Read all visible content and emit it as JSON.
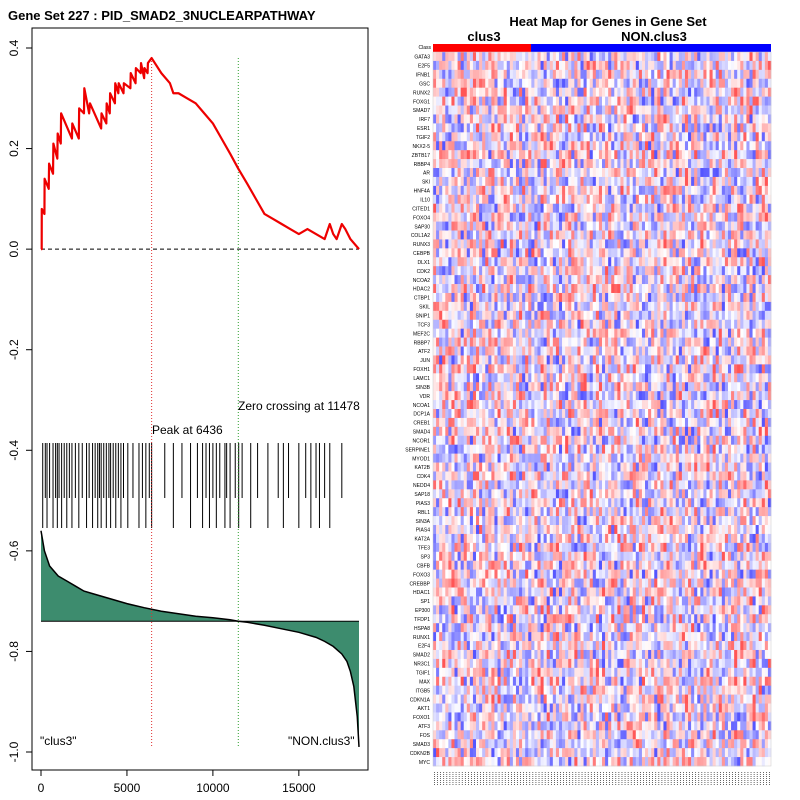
{
  "chart_data": [
    {
      "type": "line",
      "title": "Gene Set  227 : PID_SMAD2_3NUCLEARPATHWAY",
      "xlim": [
        0,
        18500
      ],
      "ylim": [
        -1.0,
        0.4
      ],
      "x_ticks": [
        "0",
        "5000",
        "10000",
        "15000"
      ],
      "y_ticks": [
        "-1.0",
        "-0.8",
        "-0.6",
        "-0.4",
        "-0.2",
        "0.0",
        "0.2",
        "0.4"
      ],
      "series": [
        {
          "x": [
            0,
            40,
            45,
            200,
            210,
            450,
            470,
            700,
            720,
            950,
            970,
            1150,
            1170,
            1800,
            1820,
            2200,
            2220,
            2500,
            2520,
            2800,
            2850,
            3500,
            3520,
            3800,
            3820,
            4000,
            4020,
            4300,
            4320,
            4500,
            4520,
            4800,
            4820,
            5200,
            5220,
            5500,
            5520,
            5800,
            5820,
            6000,
            6020,
            6200,
            6220,
            6436,
            7000,
            7500,
            7700,
            8000,
            8500,
            9000,
            9500,
            10000,
            10500,
            11000,
            11478,
            12000,
            12500,
            13000,
            13500,
            14000,
            14500,
            15000,
            15500,
            16000,
            16500,
            16800,
            17000,
            17200,
            17500,
            17700,
            18000,
            18500
          ],
          "y": [
            0.0,
            0.0,
            0.08,
            0.07,
            0.14,
            0.12,
            0.17,
            0.15,
            0.21,
            0.18,
            0.23,
            0.21,
            0.27,
            0.22,
            0.25,
            0.22,
            0.28,
            0.27,
            0.32,
            0.27,
            0.29,
            0.24,
            0.27,
            0.25,
            0.29,
            0.27,
            0.31,
            0.29,
            0.33,
            0.31,
            0.33,
            0.31,
            0.33,
            0.32,
            0.35,
            0.33,
            0.36,
            0.35,
            0.37,
            0.34,
            0.36,
            0.35,
            0.37,
            0.38,
            0.35,
            0.33,
            0.31,
            0.31,
            0.3,
            0.29,
            0.27,
            0.25,
            0.22,
            0.19,
            0.16,
            0.13,
            0.1,
            0.07,
            0.06,
            0.05,
            0.04,
            0.03,
            0.04,
            0.03,
            0.02,
            0.05,
            0.03,
            0.02,
            0.05,
            0.04,
            0.02,
            0.0
          ]
        }
      ],
      "annotations": {
        "peak_label": "Peak at 6436",
        "peak_x": 6436,
        "zero_label": "Zero crossing at 11478",
        "zero_x": 11478,
        "left_label": "\"clus3\"",
        "right_label": "\"NON.clus3\""
      },
      "hits": [
        100,
        250,
        350,
        500,
        700,
        850,
        950,
        1050,
        1200,
        1350,
        1500,
        1650,
        1800,
        2000,
        2200,
        2400,
        2650,
        2800,
        3000,
        3150,
        3300,
        3400,
        3500,
        3650,
        3800,
        3950,
        4050,
        4200,
        4350,
        4500,
        4650,
        4800,
        5050,
        5350,
        5700,
        5900,
        6100,
        6300,
        6436,
        7200,
        7700,
        8200,
        8700,
        9100,
        9400,
        9600,
        9800,
        10000,
        10200,
        10400,
        10700,
        10800,
        11000,
        11300,
        11500,
        11700,
        12200,
        12600,
        13200,
        13800,
        14100,
        14400,
        15000,
        15400,
        15700,
        16000,
        16200,
        16500,
        16800,
        17500
      ],
      "ranked_metric": {
        "x": [
          0,
          200,
          500,
          1000,
          1500,
          2000,
          2500,
          3000,
          3500,
          4000,
          5000,
          6000,
          7000,
          8000,
          9000,
          10000,
          11000,
          11478,
          12000,
          13000,
          14000,
          15000,
          16000,
          16500,
          17000,
          17500,
          17800,
          18000,
          18200,
          18400,
          18500
        ],
        "y": [
          -0.56,
          -0.6,
          -0.63,
          -0.65,
          -0.66,
          -0.67,
          -0.68,
          -0.685,
          -0.69,
          -0.695,
          -0.705,
          -0.713,
          -0.72,
          -0.725,
          -0.73,
          -0.733,
          -0.737,
          -0.74,
          -0.742,
          -0.748,
          -0.755,
          -0.762,
          -0.772,
          -0.78,
          -0.79,
          -0.805,
          -0.82,
          -0.84,
          -0.87,
          -0.93,
          -0.99
        ]
      }
    },
    {
      "type": "heatmap",
      "title": "Heat Map for Genes in Gene Set",
      "group_labels": [
        "clus3",
        "NON.clus3"
      ],
      "group_split": 0.29,
      "class_row_label": "Class",
      "genes": [
        "GATA3",
        "E2F5",
        "IFNB1",
        "GSC",
        "RUNX2",
        "FOXG1",
        "SMAD7",
        "IRF7",
        "ESR1",
        "TGIF2",
        "NKX2-5",
        "ZBTB17",
        "RBBP4",
        "AR",
        "SKI",
        "HNF4A",
        "IL10",
        "CITED1",
        "FOXO4",
        "SAP30",
        "COL1A2",
        "RUNX3",
        "CEBPB",
        "DLX1",
        "CDK2",
        "NCOA2",
        "HDAC2",
        "CTBP1",
        "SKIL",
        "SNIP1",
        "TCF3",
        "MEF2C",
        "RBBP7",
        "ATF2",
        "JUN",
        "FOXH1",
        "LAMC1",
        "SIN3B",
        "VDR",
        "NCOA1",
        "DCP1A",
        "CREB1",
        "SMAD4",
        "NCOR1",
        "SERPINE1",
        "MYOD1",
        "KAT2B",
        "CDK4",
        "NEDD4",
        "SAP18",
        "PIAS3",
        "RBL1",
        "SIN3A",
        "PIAS4",
        "KAT2A",
        "TFE3",
        "SP3",
        "CBFB",
        "FOXO3",
        "CREBBP",
        "HDAC1",
        "SP1",
        "EP300",
        "TFDP1",
        "HSPA8",
        "RUNX1",
        "E2F4",
        "SMAD2",
        "NR3C1",
        "TGIF1",
        "MAX",
        "ITGB5",
        "CDKN1A",
        "AKT1",
        "FOXO1",
        "ATF3",
        "FOS",
        "SMAD3",
        "CDKN2B",
        "MYC"
      ],
      "colors": {
        "high": "#ff0000",
        "low": "#0000ff",
        "mid": "#ffffff"
      }
    }
  ]
}
